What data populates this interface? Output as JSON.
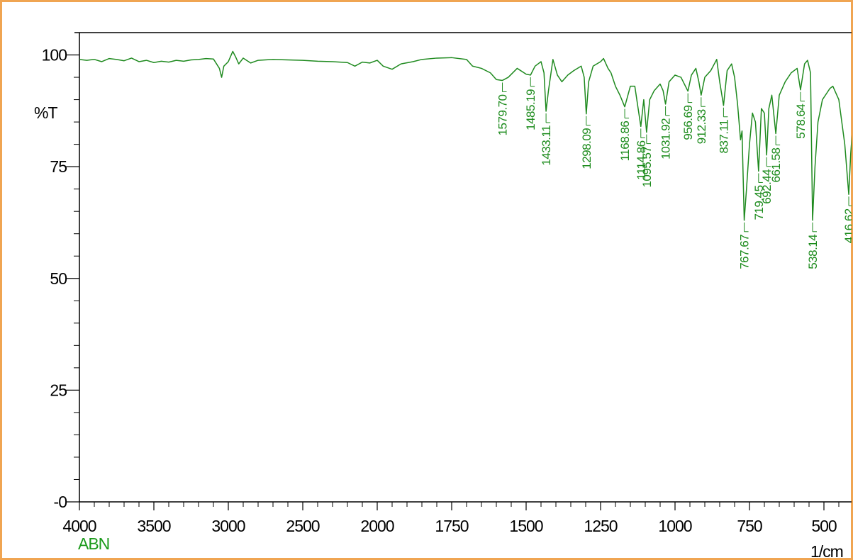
{
  "chart_data": {
    "type": "line",
    "sample_name": "ABN",
    "y_label": "%T",
    "x_label": "1/cm",
    "color": "#1f8a1f",
    "xlim": [
      4000,
      400
    ],
    "x_scale_break": {
      "at": 2000,
      "factor": 2
    },
    "ylim": [
      0,
      105
    ],
    "xticks": [
      4000,
      3500,
      3000,
      2500,
      2000,
      1750,
      1500,
      1250,
      1000,
      750,
      500
    ],
    "x_minor_ticks": [
      3900,
      3800,
      3700,
      3600,
      3400,
      3300,
      3200,
      3100,
      2900,
      2800,
      2700,
      2600,
      2400,
      2300,
      2200,
      2100,
      1950,
      1900,
      1850,
      1800,
      1700,
      1650,
      1600,
      1550,
      1450,
      1400,
      1350,
      1300,
      1200,
      1150,
      1100,
      1050,
      950,
      900,
      850,
      800,
      700,
      650,
      600,
      550,
      450
    ],
    "yticks": [
      {
        "value": 0,
        "label": "-0"
      },
      25,
      50,
      75,
      100
    ],
    "y_minor_ticks": [
      5,
      10,
      15,
      20,
      30,
      35,
      40,
      45,
      55,
      60,
      65,
      70,
      80,
      85,
      90,
      95
    ],
    "x": [
      4000,
      3950,
      3900,
      3850,
      3800,
      3750,
      3700,
      3650,
      3600,
      3550,
      3500,
      3450,
      3400,
      3350,
      3300,
      3250,
      3200,
      3150,
      3100,
      3060,
      3045,
      3030,
      3000,
      2970,
      2950,
      2930,
      2900,
      2850,
      2800,
      2700,
      2600,
      2500,
      2400,
      2300,
      2200,
      2150,
      2100,
      2050,
      2000,
      1980,
      1950,
      1920,
      1880,
      1850,
      1800,
      1750,
      1700,
      1680,
      1650,
      1620,
      1600,
      1579.7,
      1560,
      1530,
      1500,
      1485.19,
      1470,
      1450,
      1440,
      1433.11,
      1425,
      1410,
      1395,
      1380,
      1360,
      1340,
      1315,
      1305,
      1298.09,
      1290,
      1275,
      1250,
      1240,
      1225,
      1215,
      1200,
      1185,
      1168.86,
      1150,
      1135,
      1125,
      1114.86,
      1105,
      1095.57,
      1085,
      1070,
      1050,
      1040,
      1031.92,
      1020,
      1000,
      980,
      956.69,
      945,
      930,
      920,
      912.33,
      900,
      880,
      860,
      850,
      837.11,
      825,
      810,
      800,
      790,
      780,
      775,
      767.67,
      760,
      750,
      740,
      730,
      719.45,
      710,
      700,
      692.44,
      685,
      675,
      661.58,
      650,
      630,
      610,
      590,
      578.64,
      565,
      555,
      545,
      538.14,
      530,
      520,
      505,
      490,
      480,
      470,
      450,
      430,
      416.62,
      410,
      400
    ],
    "values": [
      99,
      98.8,
      99,
      98.5,
      99.2,
      99,
      98.7,
      99.3,
      98.5,
      98.8,
      98.3,
      98.6,
      98.4,
      98.8,
      98.6,
      98.9,
      99,
      99.2,
      99.1,
      97,
      95,
      97.5,
      98.5,
      100.8,
      99.5,
      98,
      99.3,
      98.2,
      98.8,
      99,
      98.9,
      98.8,
      98.6,
      98.5,
      98.3,
      97.5,
      98.4,
      98.2,
      98.8,
      97.5,
      96.8,
      98,
      98.5,
      99,
      99.3,
      99.4,
      99,
      97.5,
      97,
      96,
      94.5,
      94.3,
      95,
      97,
      95.7,
      95.5,
      97.5,
      98.5,
      96,
      87.4,
      92,
      99,
      95.5,
      94,
      95.5,
      96.5,
      97.5,
      95,
      86.8,
      94,
      97.5,
      98.5,
      99.2,
      97,
      96,
      93,
      91,
      88.4,
      93,
      93,
      88.5,
      84,
      90,
      82.7,
      90,
      92,
      93.5,
      92,
      89,
      94,
      95.5,
      95,
      91.9,
      95.5,
      97,
      94,
      91,
      95,
      96.5,
      99,
      94,
      88.7,
      96.5,
      98,
      95,
      89,
      81,
      83,
      63,
      70,
      80,
      87,
      85,
      74,
      88,
      87,
      77.6,
      88,
      91,
      82.4,
      91,
      94,
      96,
      97,
      92.2,
      98,
      98.8,
      96,
      63,
      75,
      85,
      90,
      91.5,
      92.5,
      93,
      90,
      80,
      68.8,
      78,
      87
    ],
    "peaks": {
      "x": [
        1579.7,
        1485.19,
        1433.11,
        1298.09,
        1168.86,
        1114.86,
        1095.57,
        1031.92,
        956.69,
        912.33,
        837.11,
        767.67,
        719.45,
        692.44,
        661.58,
        578.64,
        538.14,
        416.62
      ],
      "values": [
        94.3,
        95.5,
        87.4,
        86.8,
        88.4,
        84,
        82.7,
        89,
        91.9,
        91,
        88.7,
        63,
        74,
        77.6,
        82.4,
        92.2,
        63,
        68.8
      ],
      "value_labels": [
        "1579.70",
        "1485.19",
        "1433.11",
        "1298.09",
        "1168.86",
        "1114.86",
        "1095.57",
        "1031.92",
        "956.69",
        "912.33",
        "837.11",
        "767.67",
        "719.45",
        "692.44",
        "661.58",
        "578.64",
        "538.14",
        "416.62"
      ]
    }
  }
}
